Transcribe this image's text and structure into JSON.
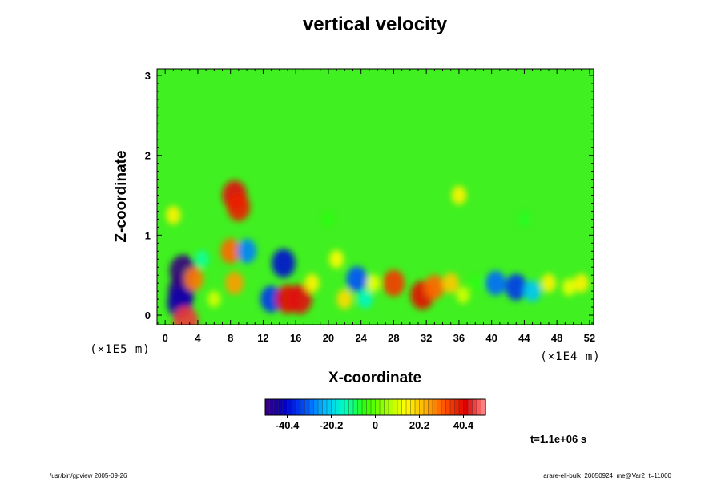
{
  "chart_data": {
    "type": "heatmap",
    "title": "vertical velocity",
    "xlabel": "X-coordinate",
    "ylabel": "Z-coordinate",
    "x_scale_note": "(×1E4 m)",
    "y_scale_note": "(×1E5 m)",
    "x_ticks": [
      "0",
      "4",
      "8",
      "12",
      "16",
      "20",
      "24",
      "28",
      "32",
      "36",
      "40",
      "44",
      "48",
      "52"
    ],
    "y_ticks": [
      "0",
      "1",
      "2",
      "3"
    ],
    "xlim": [
      -1,
      52.5
    ],
    "ylim": [
      -0.12,
      3.08
    ],
    "background_value": 0,
    "colorbar": {
      "ticks": [
        "-40.4",
        "-20.2",
        "0",
        "20.2",
        "40.4"
      ],
      "tick_values": [
        -40.4,
        -20.2,
        0,
        20.2,
        40.4
      ],
      "range": [
        -50.5,
        50.5
      ],
      "colors": [
        "#3a007a",
        "#0000c8",
        "#0050ff",
        "#00c0ff",
        "#00ffc0",
        "#2cff00",
        "#9cff00",
        "#ffff00",
        "#ffb000",
        "#ff5000",
        "#e00000",
        "#ff9090"
      ]
    },
    "features": [
      {
        "x": 2.0,
        "z": 0.3,
        "value": -48
      },
      {
        "x": 2.2,
        "z": 0.55,
        "value": -50
      },
      {
        "x": 1.8,
        "z": 0.15,
        "value": -45
      },
      {
        "x": 4.5,
        "z": 0.7,
        "value": -12
      },
      {
        "x": 3.5,
        "z": 0.45,
        "value": 28
      },
      {
        "x": 2.5,
        "z": -0.08,
        "value": 45
      },
      {
        "x": 1.0,
        "z": 1.25,
        "value": 15
      },
      {
        "x": 6.0,
        "z": 0.2,
        "value": 10
      },
      {
        "x": 8.0,
        "z": 0.8,
        "value": 30
      },
      {
        "x": 8.5,
        "z": 0.4,
        "value": 25
      },
      {
        "x": 8.5,
        "z": 1.5,
        "value": 42
      },
      {
        "x": 9.0,
        "z": 1.35,
        "value": 38
      },
      {
        "x": 10.0,
        "z": 0.8,
        "value": -28
      },
      {
        "x": 13.0,
        "z": 0.2,
        "value": -35
      },
      {
        "x": 14.5,
        "z": 0.65,
        "value": -40
      },
      {
        "x": 15.0,
        "z": 0.2,
        "value": 40
      },
      {
        "x": 16.5,
        "z": 0.2,
        "value": 42
      },
      {
        "x": 18.0,
        "z": 0.4,
        "value": 15
      },
      {
        "x": 21.0,
        "z": 0.7,
        "value": 14
      },
      {
        "x": 22.0,
        "z": 0.2,
        "value": 18
      },
      {
        "x": 23.5,
        "z": 0.45,
        "value": -32
      },
      {
        "x": 24.5,
        "z": 0.2,
        "value": -15
      },
      {
        "x": 25.5,
        "z": 0.4,
        "value": 12
      },
      {
        "x": 28.0,
        "z": 0.4,
        "value": 35
      },
      {
        "x": 31.5,
        "z": 0.25,
        "value": 40
      },
      {
        "x": 33.0,
        "z": 0.35,
        "value": 30
      },
      {
        "x": 35.0,
        "z": 0.4,
        "value": 20
      },
      {
        "x": 36.5,
        "z": 0.25,
        "value": 10
      },
      {
        "x": 38.0,
        "z": 0.4,
        "value": -5
      },
      {
        "x": 40.5,
        "z": 0.4,
        "value": -30
      },
      {
        "x": 43.0,
        "z": 0.35,
        "value": -35
      },
      {
        "x": 45.0,
        "z": 0.3,
        "value": -22
      },
      {
        "x": 47.0,
        "z": 0.4,
        "value": 15
      },
      {
        "x": 49.5,
        "z": 0.35,
        "value": 12
      },
      {
        "x": 51.0,
        "z": 0.4,
        "value": 15
      },
      {
        "x": 36.0,
        "z": 1.5,
        "value": 15
      },
      {
        "x": 20.0,
        "z": 1.2,
        "value": -5
      },
      {
        "x": 44.0,
        "z": 1.2,
        "value": -6
      }
    ]
  },
  "time_label": "t=1.1e+06 s",
  "footer_left": "/usr/bin/gpview 2005-09-26",
  "footer_right": "arare-ell-bulk_20050924_me@Var2_t=11000"
}
